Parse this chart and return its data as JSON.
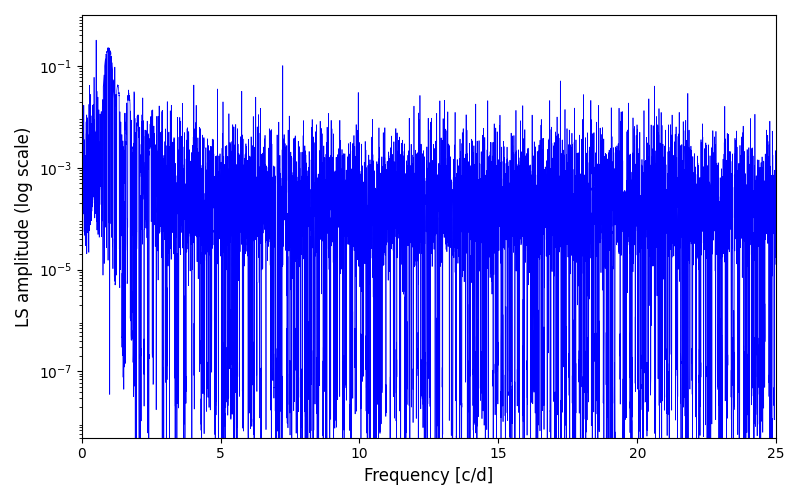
{
  "title": "",
  "xlabel": "Frequency [c/d]",
  "ylabel": "LS amplitude (log scale)",
  "xlim": [
    0,
    25
  ],
  "ylim_log": [
    5e-09,
    1.0
  ],
  "yscale": "log",
  "yticks": [
    1e-07,
    1e-05,
    0.001,
    0.1
  ],
  "xticks": [
    0,
    5,
    10,
    15,
    20,
    25
  ],
  "line_color": "#0000ff",
  "line_width": 0.5,
  "background_color": "#ffffff",
  "seed": 42,
  "n_points": 10000,
  "freq_max": 25.0
}
